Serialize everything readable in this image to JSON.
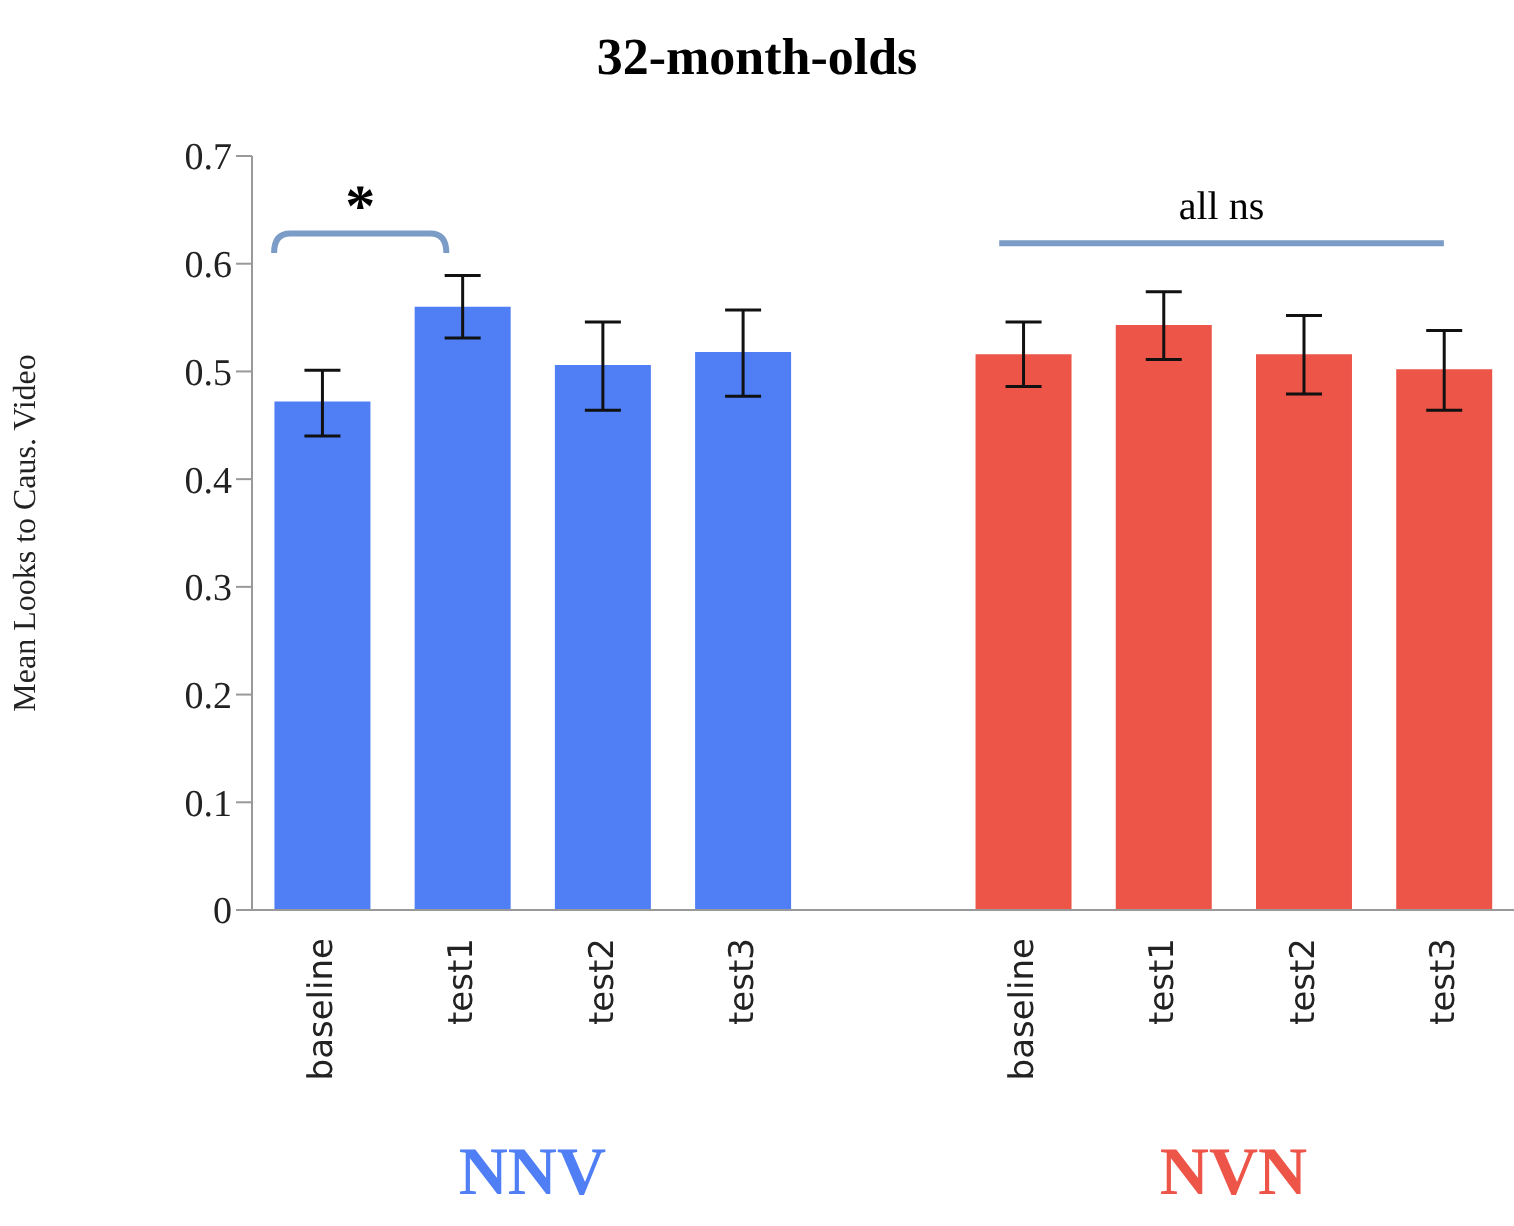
{
  "chart_data": {
    "type": "bar",
    "title": "32-month-olds",
    "ylabel": "Mean Looks to Caus. Video",
    "categories": [
      "baseline",
      "test1",
      "test2",
      "test3",
      null,
      "baseline",
      "test1",
      "test2",
      "test3"
    ],
    "series": [
      {
        "name": "NNV",
        "color": "#4f7ef5",
        "values": [
          0.472,
          0.56,
          0.506,
          0.518,
          null,
          null,
          null,
          null,
          null
        ],
        "errors": [
          [
            0.44,
            0.501
          ],
          [
            0.531,
            0.589
          ],
          [
            0.464,
            0.546
          ],
          [
            0.477,
            0.557
          ],
          null,
          null,
          null,
          null,
          null
        ]
      },
      {
        "name": "NVN",
        "color": "#ee5549",
        "values": [
          null,
          null,
          null,
          null,
          null,
          0.516,
          0.543,
          0.516,
          0.502
        ],
        "errors": [
          null,
          null,
          null,
          null,
          null,
          [
            0.486,
            0.546
          ],
          [
            0.511,
            0.574
          ],
          [
            0.479,
            0.552
          ],
          [
            0.464,
            0.538
          ]
        ]
      }
    ],
    "ylim": [
      0,
      0.7
    ],
    "yticks": [
      0,
      0.1,
      0.2,
      0.3,
      0.4,
      0.5,
      0.6,
      0.7
    ],
    "grid": false,
    "legend": false,
    "annotations": [
      "*",
      "all ns"
    ]
  }
}
